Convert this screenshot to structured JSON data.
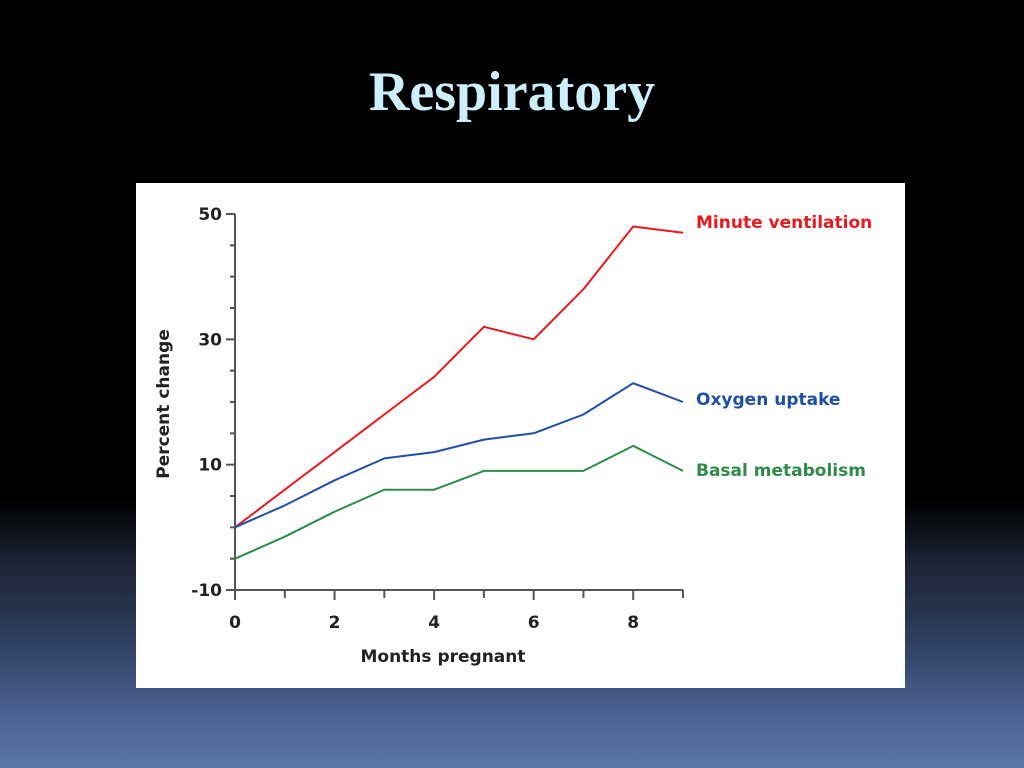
{
  "slide": {
    "title": "Respiratory"
  },
  "chart_data": {
    "type": "line",
    "title": "",
    "xlabel": "Months pregnant",
    "ylabel": "Percent change",
    "xlim": [
      0,
      9
    ],
    "ylim": [
      -10,
      50
    ],
    "x_ticks": [
      0,
      2,
      4,
      6,
      8
    ],
    "x_minor_ticks": [
      1,
      3,
      5,
      7,
      9
    ],
    "y_ticks": [
      -10,
      10,
      30,
      50
    ],
    "y_minor_step": 5,
    "grid": false,
    "legend": "inline labels at right end of each line",
    "series": [
      {
        "name": "Minute ventilation",
        "color": "#e8191f",
        "x": [
          0,
          1,
          2,
          3,
          4,
          5,
          6,
          7,
          8,
          9
        ],
        "values": [
          0,
          6,
          12,
          18,
          24,
          32,
          30,
          38,
          48,
          47
        ]
      },
      {
        "name": "Oxygen uptake",
        "color": "#1f4fa5",
        "x": [
          0,
          1,
          2,
          3,
          4,
          5,
          6,
          7,
          8,
          9
        ],
        "values": [
          0,
          3.5,
          7.5,
          11,
          12,
          14,
          15,
          18,
          23,
          20
        ]
      },
      {
        "name": "Basal metabolism",
        "color": "#2e8b48",
        "x": [
          0,
          1,
          2,
          3,
          4,
          5,
          6,
          7,
          8,
          9
        ],
        "values": [
          -5,
          -1.5,
          2.5,
          6,
          6,
          9,
          9,
          9,
          13,
          9
        ]
      }
    ]
  }
}
